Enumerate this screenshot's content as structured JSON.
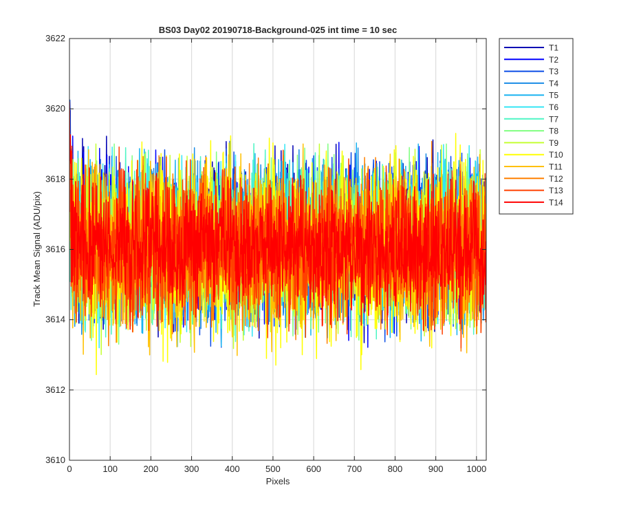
{
  "chart_data": {
    "type": "line",
    "title": "BS03 Day02 20190718-Background-025 int time = 10 sec",
    "xlabel": "Pixels",
    "ylabel": "Track Mean Signal (ADU/pix)",
    "xlim": [
      0,
      1024
    ],
    "ylim": [
      3610,
      3622
    ],
    "xticks": [
      0,
      100,
      200,
      300,
      400,
      500,
      600,
      700,
      800,
      900,
      1000
    ],
    "yticks": [
      3610,
      3612,
      3614,
      3616,
      3618,
      3620,
      3622
    ],
    "grid": true,
    "legend_position": "outside-top-right",
    "n_points": 1024,
    "series": [
      {
        "name": "T1",
        "color": "#0000b3",
        "mean": 3616.2,
        "amp": 1.6,
        "start_peak": 3621.3,
        "max": 3620.0
      },
      {
        "name": "T2",
        "color": "#0000ff",
        "mean": 3616.2,
        "amp": 1.6,
        "start_peak": 3621.3,
        "max": 3619.8
      },
      {
        "name": "T3",
        "color": "#0b4de6",
        "mean": 3616.2,
        "amp": 1.6,
        "start_peak": 3620.6,
        "max": 3620.3
      },
      {
        "name": "T4",
        "color": "#1a8ce6",
        "mean": 3616.2,
        "amp": 1.6,
        "start_peak": 3620.4,
        "max": 3620.3
      },
      {
        "name": "T5",
        "color": "#1ab3f0",
        "mean": 3616.2,
        "amp": 1.6,
        "start_peak": 3620.0,
        "max": 3619.5
      },
      {
        "name": "T6",
        "color": "#33e6f5",
        "mean": 3616.2,
        "amp": 1.6,
        "start_peak": 3619.8,
        "max": 3619.3
      },
      {
        "name": "T7",
        "color": "#4df5c4",
        "mean": 3616.2,
        "amp": 1.6,
        "start_peak": 3619.6,
        "max": 3619.2
      },
      {
        "name": "T8",
        "color": "#80ff80",
        "mean": 3616.1,
        "amp": 1.7,
        "start_peak": 3619.5,
        "max": 3619.0
      },
      {
        "name": "T9",
        "color": "#c4ff33",
        "mean": 3616.1,
        "amp": 1.7,
        "start_peak": 3619.4,
        "max": 3619.0
      },
      {
        "name": "T10",
        "color": "#ffff00",
        "mean": 3616.0,
        "amp": 1.9,
        "start_peak": 3619.3,
        "max": 3619.3
      },
      {
        "name": "T11",
        "color": "#ffc000",
        "mean": 3616.0,
        "amp": 1.7,
        "start_peak": 3619.5,
        "max": 3619.0
      },
      {
        "name": "T12",
        "color": "#ff8000",
        "mean": 3616.0,
        "amp": 1.6,
        "start_peak": 3619.8,
        "max": 3619.2
      },
      {
        "name": "T13",
        "color": "#ff4000",
        "mean": 3616.0,
        "amp": 1.5,
        "start_peak": 3620.3,
        "max": 3620.0
      },
      {
        "name": "T14",
        "color": "#ff0000",
        "mean": 3616.0,
        "amp": 1.3,
        "start_peak": 3621.5,
        "max": 3620.2
      }
    ]
  }
}
